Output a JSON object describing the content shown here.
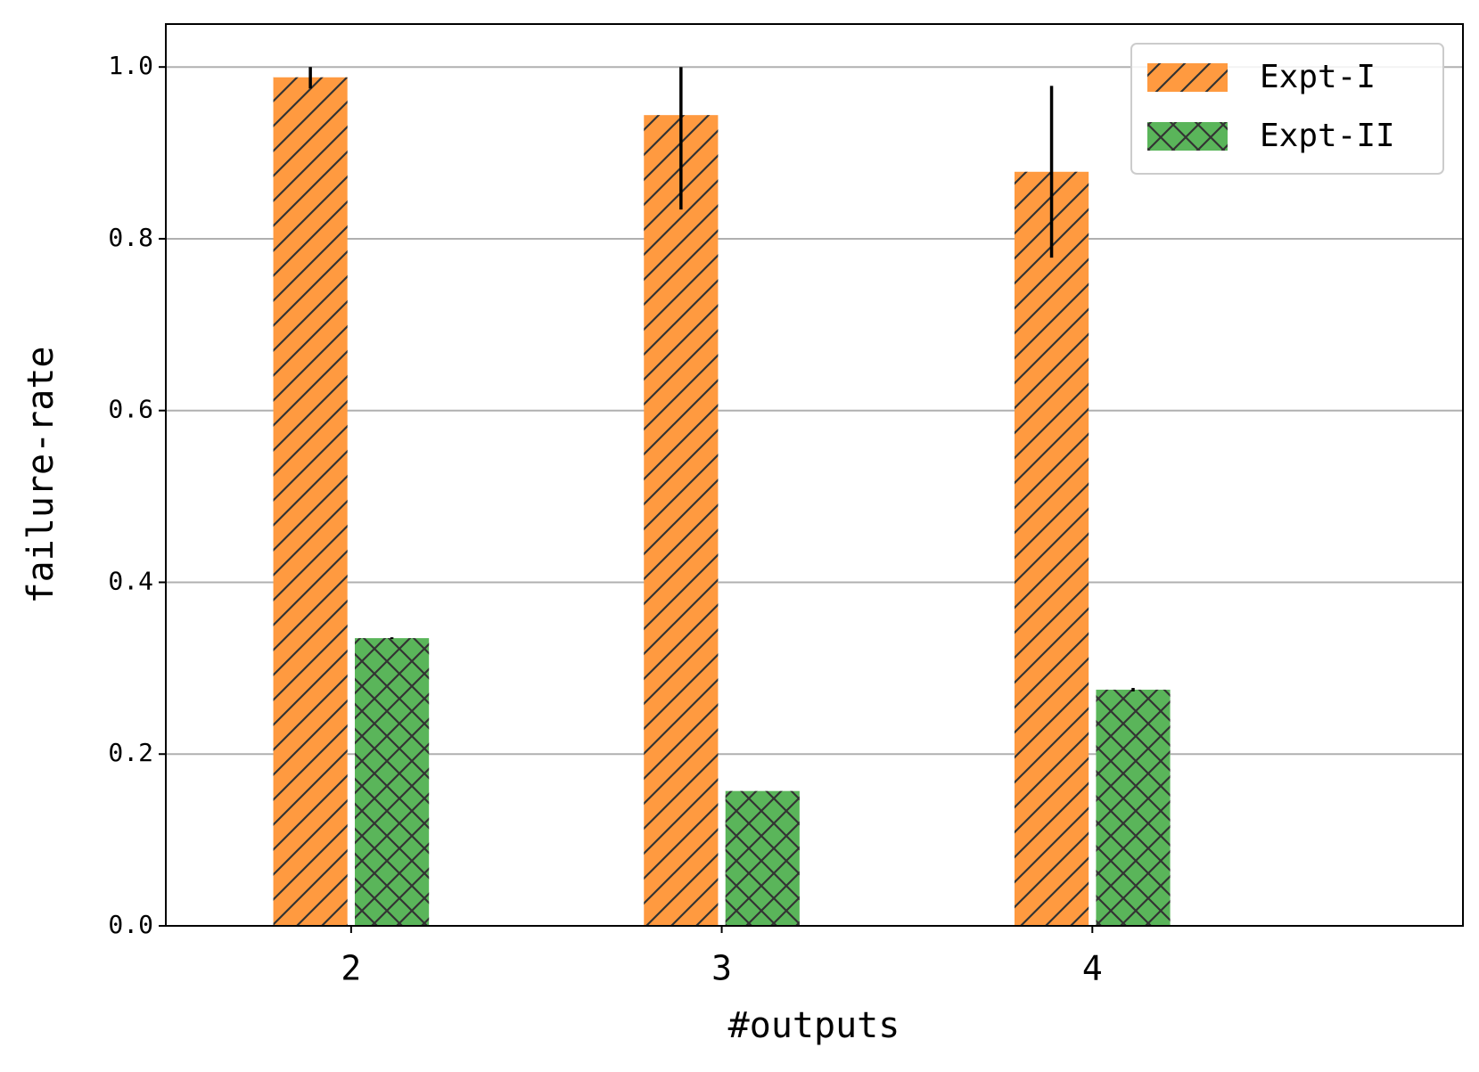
{
  "chart_data": {
    "type": "bar",
    "x_label": "#outputs",
    "y_label": "failure-rate",
    "x": [
      2,
      3,
      4
    ],
    "xlim": [
      1.5,
      5.0
    ],
    "xticks": [
      2,
      3,
      4
    ],
    "ylim": [
      0,
      1.05
    ],
    "yticks": [
      {
        "value": 0,
        "label": "0.0"
      },
      {
        "value": 0.2,
        "label": "0.2"
      },
      {
        "value": 0.4,
        "label": "0.4"
      },
      {
        "value": 0.6,
        "label": "0.6"
      },
      {
        "value": 0.8,
        "label": "0.8"
      },
      {
        "value": 1.0,
        "label": "1.0"
      }
    ],
    "grid": true,
    "legend": "upper right",
    "series": [
      {
        "name": "Expt-I",
        "color": "#ff9a40",
        "hatch": "/",
        "values": [
          0.988,
          0.944,
          0.878
        ],
        "errors": [
          [
            0.013,
            0.012
          ],
          [
            0.11,
            0.056
          ],
          [
            0.1,
            0.1
          ]
        ]
      },
      {
        "name": "Expt-II",
        "color": "#5ab55a",
        "hatch": "x",
        "values": [
          0.335,
          0.157,
          0.275
        ],
        "errors": [
          [
            0.001,
            0.001
          ],
          [
            0,
            0
          ],
          [
            0.002,
            0.002
          ]
        ]
      }
    ]
  }
}
